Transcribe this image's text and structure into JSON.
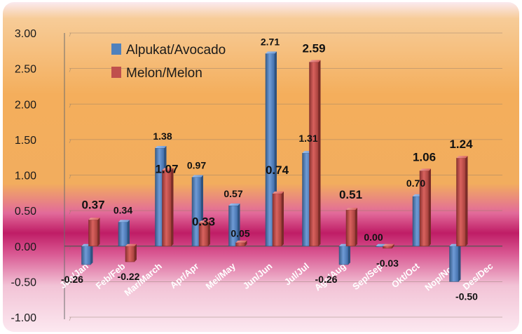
{
  "chart_data": {
    "type": "bar",
    "categories": [
      "Jan/Jan",
      "Feb/Feb",
      "Mar/March",
      "Apr/Apr",
      "Mei/May",
      "Jun/Jun",
      "Jul/Jul",
      "Ags/Aug",
      "Sep/Sep",
      "Okt/Oct",
      "Nop/Nov",
      "Des/Dec"
    ],
    "series": [
      {
        "name": "Alpukat/Avocado",
        "color": "#4F81BD",
        "values": [
          -0.26,
          0.34,
          1.38,
          0.97,
          0.57,
          2.71,
          1.31,
          -0.26,
          0.0,
          0.7,
          -0.5,
          null
        ]
      },
      {
        "name": "Melon/Melon",
        "color": "#C0504D",
        "values": [
          0.37,
          -0.22,
          1.07,
          0.33,
          0.05,
          0.74,
          2.59,
          0.51,
          -0.03,
          1.06,
          1.24,
          null
        ]
      }
    ],
    "data_labels": {
      "Alpukat/Avocado": [
        "-0.26",
        "0.34",
        "1.38",
        "0.97",
        "0.57",
        "2.71",
        "1.31",
        "-0.26",
        "0.00",
        "0.70",
        "-0.50",
        ""
      ],
      "Melon/Melon": [
        "0.37",
        "-0.22",
        "1.07",
        "0.33",
        "0.05",
        "0.74",
        "2.59",
        "0.51",
        "-0.03",
        "1.06",
        "1.24",
        ""
      ]
    },
    "y_ticks": [
      "3.00",
      "2.50",
      "2.00",
      "1.50",
      "1.00",
      "0.50",
      "0.00",
      "-0.50",
      "-1.00"
    ],
    "ylim": [
      -1.0,
      3.0
    ],
    "grid": true,
    "legend_position": "top-left",
    "title": "",
    "xlabel": "",
    "ylabel": ""
  }
}
